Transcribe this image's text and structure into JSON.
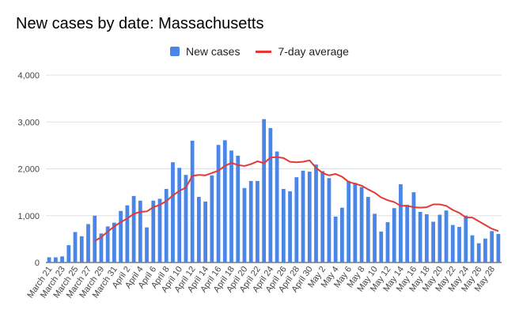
{
  "chart_data": {
    "type": "bar",
    "title": "New cases by date: Massachusetts",
    "xlabel": "",
    "ylabel": "",
    "ylim": [
      0,
      4000
    ],
    "yticks": [
      0,
      1000,
      2000,
      3000,
      4000
    ],
    "ytick_labels": [
      "0",
      "1,000",
      "2,000",
      "3,000",
      "4,000"
    ],
    "grid": true,
    "legend_position": "top-center",
    "colors": {
      "bars": "#4a86e8",
      "average": "#e53935",
      "grid": "#e0e0e0",
      "axis": "#333333"
    },
    "categories": [
      "March 21",
      "March 22",
      "March 23",
      "March 24",
      "March 25",
      "March 26",
      "March 27",
      "March 28",
      "March 29",
      "March 30",
      "March 31",
      "April 1",
      "April 2",
      "April 3",
      "April 4",
      "April 5",
      "April 6",
      "April 7",
      "April 8",
      "April 9",
      "April 10",
      "April 11",
      "April 12",
      "April 13",
      "April 14",
      "April 15",
      "April 16",
      "April 17",
      "April 18",
      "April 19",
      "April 20",
      "April 21",
      "April 22",
      "April 23",
      "April 24",
      "April 25",
      "April 26",
      "April 27",
      "April 28",
      "April 29",
      "April 30",
      "May 1",
      "May 2",
      "May 3",
      "May 4",
      "May 5",
      "May 6",
      "May 7",
      "May 8",
      "May 9",
      "May 10",
      "May 11",
      "May 12",
      "May 13",
      "May 14",
      "May 15",
      "May 16",
      "May 17",
      "May 18",
      "May 19",
      "May 20",
      "May 21",
      "May 22",
      "May 23",
      "May 24",
      "May 25",
      "May 26",
      "May 27",
      "May 28",
      "May 29"
    ],
    "xtick_labels": [
      "March 21",
      "March 23",
      "March 25",
      "March 27",
      "March 29",
      "March 31",
      "April 2",
      "April 4",
      "April 6",
      "April 8",
      "April 10",
      "April 12",
      "April 14",
      "April 16",
      "April 18",
      "April 20",
      "April 22",
      "April 24",
      "April 26",
      "April 28",
      "April 30",
      "May 2",
      "May 4",
      "May 6",
      "May 8",
      "May 10",
      "May 12",
      "May 14",
      "May 16",
      "May 18",
      "May 20",
      "May 22",
      "May 24",
      "May 26",
      "May 28"
    ],
    "series": [
      {
        "name": "New cases",
        "type": "bar",
        "values": [
          110,
          110,
          130,
          370,
          650,
          560,
          820,
          1000,
          620,
          770,
          850,
          1100,
          1220,
          1420,
          1320,
          750,
          1320,
          1360,
          1570,
          2140,
          2020,
          1870,
          2600,
          1400,
          1300,
          1860,
          2510,
          2610,
          2390,
          2280,
          1590,
          1740,
          1740,
          3060,
          2870,
          2370,
          1570,
          1520,
          1820,
          1960,
          1940,
          2090,
          1950,
          1800,
          980,
          1170,
          1740,
          1700,
          1610,
          1400,
          1040,
          660,
          860,
          1160,
          1670,
          1230,
          1500,
          1080,
          1030,
          870,
          1020,
          1110,
          800,
          760,
          1000,
          580,
          410,
          510,
          670,
          610
        ]
      },
      {
        "name": "7-day average",
        "type": "line",
        "values": [
          null,
          null,
          null,
          null,
          null,
          null,
          null,
          460,
          540,
          660,
          770,
          860,
          940,
          1040,
          1080,
          1090,
          1180,
          1230,
          1310,
          1430,
          1530,
          1600,
          1850,
          1870,
          1860,
          1910,
          1960,
          2060,
          2130,
          2080,
          2060,
          2100,
          2160,
          2120,
          2240,
          2250,
          2230,
          2150,
          2140,
          2150,
          2180,
          2020,
          1910,
          1860,
          1890,
          1830,
          1720,
          1680,
          1640,
          1560,
          1490,
          1390,
          1330,
          1290,
          1210,
          1210,
          1180,
          1170,
          1180,
          1240,
          1240,
          1210,
          1120,
          1060,
          960,
          960,
          880,
          800,
          720,
          670
        ]
      }
    ]
  }
}
